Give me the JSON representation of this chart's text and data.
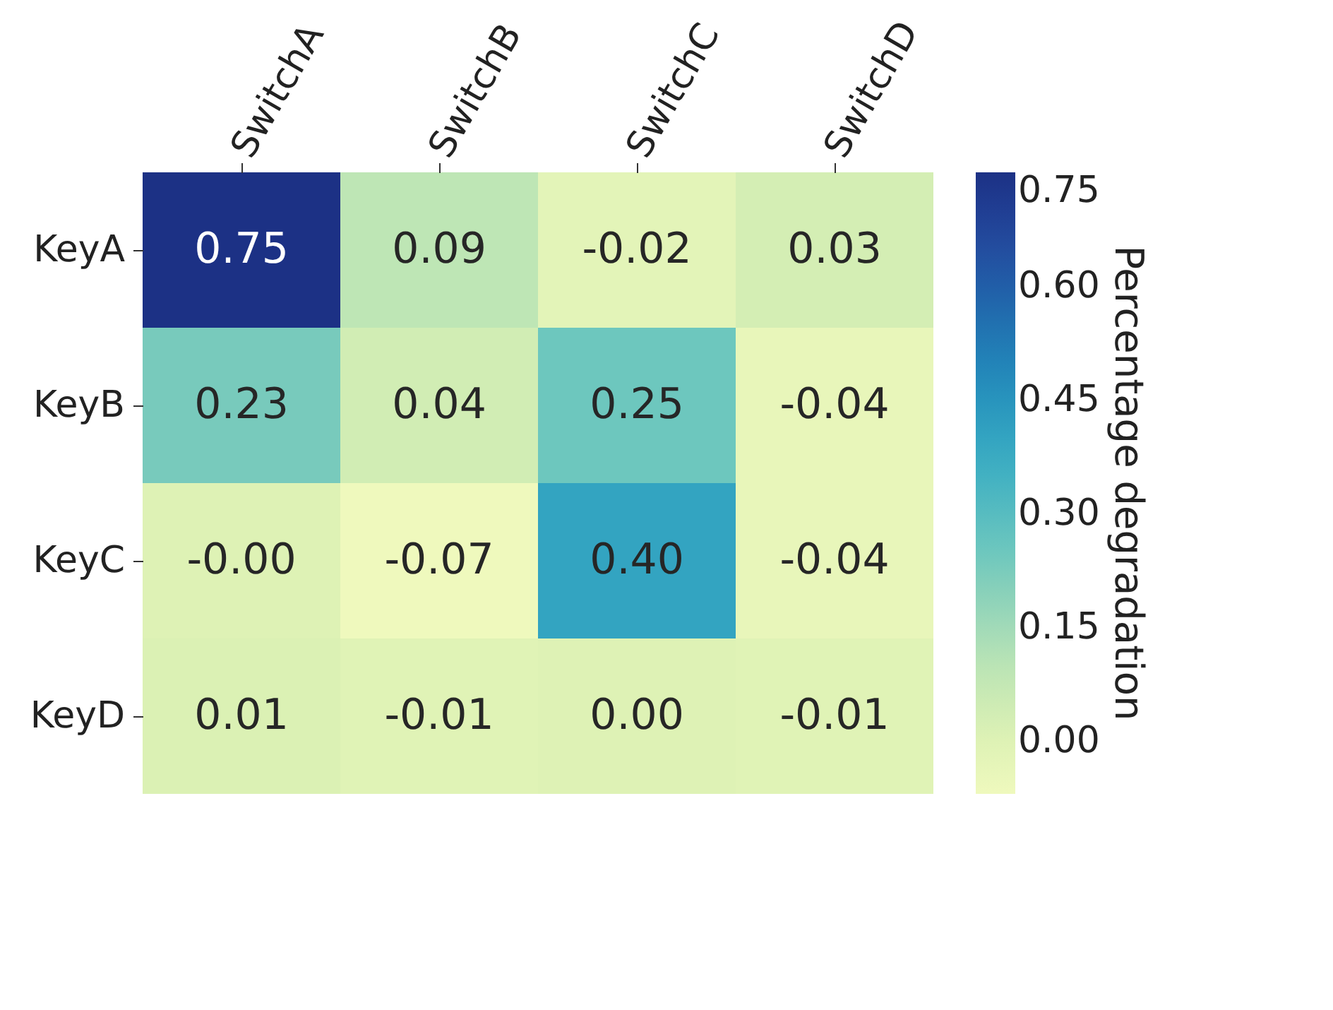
{
  "chart_data": {
    "type": "heatmap",
    "clabel": "Percentage degradation",
    "categories": [
      "SwitchA",
      "SwitchB",
      "SwitchC",
      "SwitchD"
    ],
    "y_categories": [
      "KeyA",
      "KeyB",
      "KeyC",
      "KeyD"
    ],
    "cells": [
      [
        0.75,
        0.09,
        -0.02,
        0.03
      ],
      [
        0.23,
        0.04,
        0.25,
        -0.04
      ],
      [
        -0.0,
        -0.07,
        0.4,
        -0.04
      ],
      [
        0.01,
        -0.01,
        0.0,
        -0.01
      ]
    ],
    "cell_labels": [
      [
        "0.75",
        "0.09",
        "-0.02",
        "0.03"
      ],
      [
        "0.23",
        "0.04",
        "0.25",
        "-0.04"
      ],
      [
        "-0.00",
        "-0.07",
        "0.40",
        "-0.04"
      ],
      [
        "0.01",
        "-0.01",
        "0.00",
        "-0.01"
      ]
    ],
    "clim": [
      -0.07,
      0.75
    ],
    "cticks": [
      {
        "value": 0,
        "label": "0.00"
      },
      {
        "value": 0.15,
        "label": "0.15"
      },
      {
        "value": 0.3,
        "label": "0.30"
      },
      {
        "value": 0.45,
        "label": "0.45"
      },
      {
        "value": 0.6,
        "label": "0.60"
      },
      {
        "value": 0.75,
        "label": "0.75"
      }
    ]
  }
}
